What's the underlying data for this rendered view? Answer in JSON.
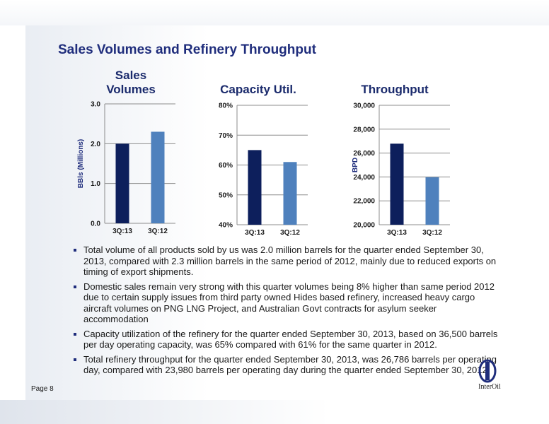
{
  "slide": {
    "title": "Sales Volumes and Refinery Throughput",
    "page_label": "Page 8",
    "logo_text": "InterOil"
  },
  "colors": {
    "dark_bar": "#0d1f5c",
    "light_bar": "#4f81bd",
    "title": "#1f2d7c"
  },
  "chart_data": [
    {
      "type": "bar",
      "title": "Sales Volumes",
      "title_lines": [
        "Sales",
        "Volumes"
      ],
      "ylabel": "BBls (Millions)",
      "categories": [
        "3Q:13",
        "3Q:12"
      ],
      "values": [
        2.0,
        2.3
      ],
      "ylim": [
        0.0,
        3.0
      ],
      "yticks": [
        0.0,
        1.0,
        2.0,
        3.0
      ],
      "tick_labels": [
        "0.0",
        "1.0",
        "2.0",
        "3.0"
      ],
      "grid": true
    },
    {
      "type": "bar",
      "title": "Capacity Util.",
      "title_lines": [
        "Capacity Util."
      ],
      "ylabel": "",
      "categories": [
        "3Q:13",
        "3Q:12"
      ],
      "values": [
        65,
        61
      ],
      "ylim": [
        40,
        80
      ],
      "yticks": [
        40,
        50,
        60,
        70,
        80
      ],
      "tick_labels": [
        "40%",
        "50%",
        "60%",
        "70%",
        "80%"
      ],
      "grid": true
    },
    {
      "type": "bar",
      "title": "Throughput",
      "title_lines": [
        "Throughput"
      ],
      "ylabel": "BPD",
      "categories": [
        "3Q:13",
        "3Q:12"
      ],
      "values": [
        26786,
        23980
      ],
      "ylim": [
        20000,
        30000
      ],
      "yticks": [
        20000,
        22000,
        24000,
        26000,
        28000,
        30000
      ],
      "tick_labels": [
        "20,000",
        "22,000",
        "24,000",
        "26,000",
        "28,000",
        "30,000"
      ],
      "grid": true
    }
  ],
  "bullets": [
    "Total volume of all products sold by us was 2.0 million barrels for the quarter ended September 30, 2013, compared with 2.3 million barrels in the same period of 2012, mainly due to reduced exports on timing of export shipments.",
    "Domestic sales remain very strong with this quarter volumes being 8% higher than same period 2012 due to certain supply issues from third party owned Hides based refinery, increased heavy cargo aircraft volumes on PNG LNG Project, and Australian Govt contracts for asylum seeker accommodation",
    "Capacity utilization of the refinery for the quarter ended September 30, 2013, based on 36,500 barrels per day operating capacity, was 65% compared with 61% for the same quarter in 2012.",
    "Total refinery throughput for the quarter ended September 30, 2013, was 26,786 barrels per operating day, compared with 23,980 barrels per operating day during the quarter ended September 30, 2012."
  ]
}
